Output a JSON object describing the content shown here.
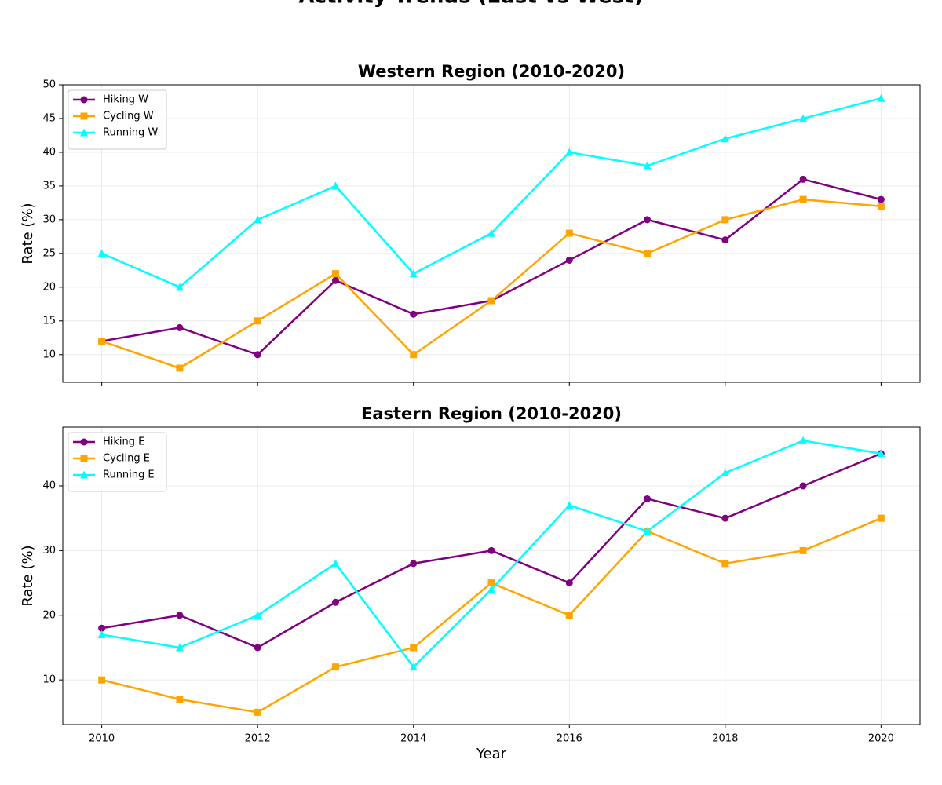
{
  "title": "Activity Trends (East vs West)",
  "chart_data": [
    {
      "type": "line",
      "title": "Western Region (2010-2020)",
      "ylabel": "Rate (%)",
      "x": [
        2010,
        2011,
        2012,
        2013,
        2014,
        2015,
        2016,
        2017,
        2018,
        2019,
        2020
      ],
      "series": [
        {
          "name": "Hiking W",
          "color": "#800080",
          "marker": "circle",
          "values": [
            12,
            14,
            10,
            21,
            16,
            18,
            24,
            30,
            27,
            36,
            33
          ]
        },
        {
          "name": "Cycling W",
          "color": "#ffa500",
          "marker": "square",
          "values": [
            12,
            8,
            15,
            22,
            10,
            18,
            28,
            25,
            30,
            33,
            32
          ]
        },
        {
          "name": "Running W",
          "color": "#00ffff",
          "marker": "triangle",
          "values": [
            25,
            20,
            30,
            35,
            22,
            28,
            40,
            38,
            42,
            45,
            48
          ]
        }
      ],
      "xlim": [
        2009.5,
        2020.5
      ],
      "xticks": [
        2010,
        2012,
        2014,
        2016,
        2018,
        2020
      ],
      "ylim": [
        5.9,
        50
      ],
      "yticks": [
        10,
        15,
        20,
        25,
        30,
        35,
        40,
        45,
        50
      ],
      "grid": true,
      "legend": "upper left"
    },
    {
      "type": "line",
      "title": "Eastern Region (2010-2020)",
      "xlabel": "Year",
      "ylabel": "Rate (%)",
      "x": [
        2010,
        2011,
        2012,
        2013,
        2014,
        2015,
        2016,
        2017,
        2018,
        2019,
        2020
      ],
      "series": [
        {
          "name": "Hiking E",
          "color": "#800080",
          "marker": "circle",
          "values": [
            18,
            20,
            15,
            22,
            28,
            30,
            25,
            38,
            35,
            40,
            45
          ]
        },
        {
          "name": "Cycling E",
          "color": "#ffa500",
          "marker": "square",
          "values": [
            10,
            7,
            5,
            12,
            15,
            25,
            20,
            33,
            28,
            30,
            35
          ]
        },
        {
          "name": "Running E",
          "color": "#00ffff",
          "marker": "triangle",
          "values": [
            17,
            15,
            20,
            28,
            12,
            24,
            37,
            33,
            42,
            47,
            45
          ]
        }
      ],
      "xlim": [
        2009.5,
        2020.5
      ],
      "xticks": [
        2010,
        2012,
        2014,
        2016,
        2018,
        2020
      ],
      "ylim": [
        3.1,
        49.1
      ],
      "yticks": [
        10,
        20,
        30,
        40
      ],
      "grid": true,
      "legend": "upper left"
    }
  ]
}
